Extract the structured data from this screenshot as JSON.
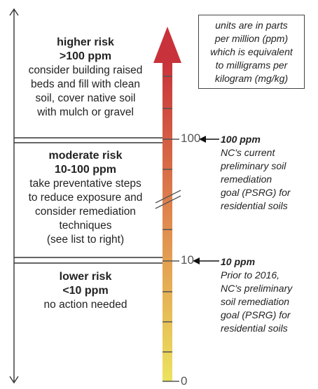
{
  "zones": {
    "higher": {
      "title": "higher risk",
      "range": ">100 ppm",
      "lines": [
        "consider building raised",
        "beds and fill with clean",
        "soil, cover native soil",
        "with mulch or gravel"
      ]
    },
    "moderate": {
      "title": "moderate risk",
      "range": "10-100 ppm",
      "lines": [
        "take preventative steps",
        "to reduce exposure and",
        "consider remediation",
        "techniques",
        "(see list to right)"
      ]
    },
    "lower": {
      "title": "lower risk",
      "range": "<10 ppm",
      "lines": [
        "no action needed"
      ]
    }
  },
  "units_box": {
    "lines": [
      "units are in parts",
      "per million (ppm)",
      "which is equivalent",
      "to milligrams per",
      "kilogram (mg/kg)"
    ]
  },
  "scale": {
    "labels": {
      "high": "100",
      "mid": "10",
      "zero": "0"
    },
    "colors": {
      "top": "#c8323a",
      "middle": "#e08a4e",
      "bottom": "#ece35e"
    }
  },
  "notes": {
    "n100": {
      "head": "100 ppm",
      "lines": [
        "NC's current",
        "preliminary soil",
        "remediation",
        "goal (PSRG) for",
        "residential soils"
      ]
    },
    "n10": {
      "head": "10 ppm",
      "lines": [
        "Prior to 2016,",
        "NC's preliminary",
        "soil remediation",
        "goal (PSRG) for",
        "residential soils"
      ]
    }
  }
}
